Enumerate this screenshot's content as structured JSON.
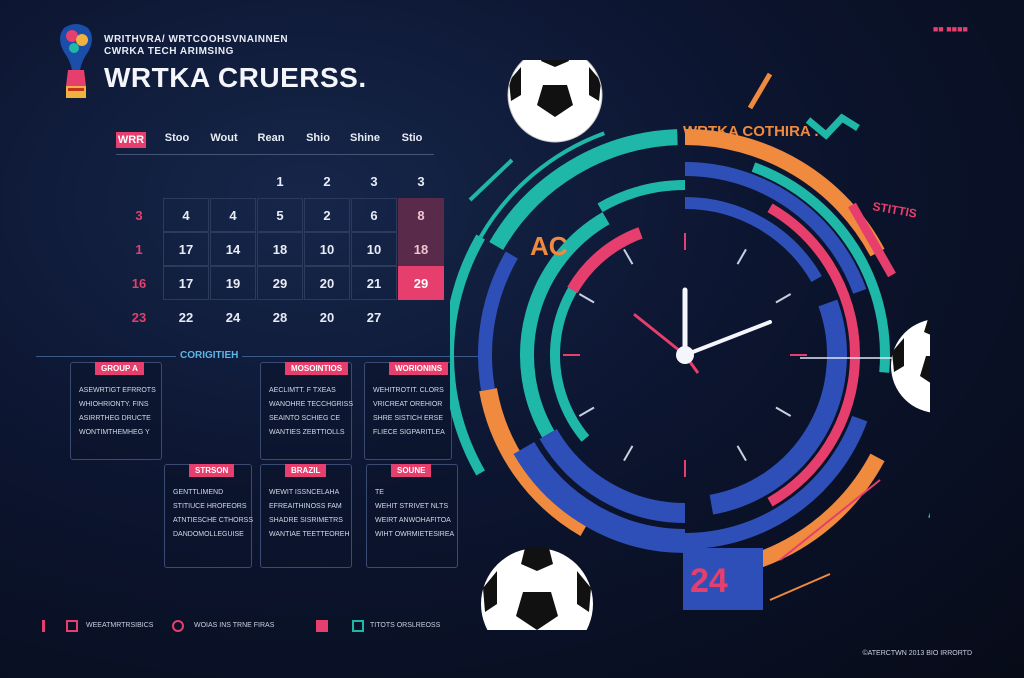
{
  "header": {
    "subtitle_line1": "WRITHVRA/ WRTCOOHSVNAINNEN",
    "subtitle_line2": "CWRKA TECH ARIMSING",
    "title": "WRTKA CRUERSS.",
    "top_right": "■■ ■■■■"
  },
  "calendar": {
    "day_headers": [
      "WRR",
      "Stoo",
      "Wout",
      "Rean",
      "Shio",
      "Shine",
      "Stio"
    ],
    "rows": [
      [
        "",
        "",
        "",
        "1",
        "2",
        "3",
        "3"
      ],
      [
        "3",
        "4",
        "4",
        "5",
        "2",
        "6",
        "8"
      ],
      [
        "1",
        "17",
        "14",
        "18",
        "10",
        "10",
        "18"
      ],
      [
        "16",
        "17",
        "19",
        "29",
        "20",
        "21",
        "29"
      ],
      [
        "23",
        "22",
        "24",
        "28",
        "20",
        "27",
        ""
      ]
    ]
  },
  "section": {
    "label": "CORIGITIEH"
  },
  "cards": [
    {
      "head": "GROUP A",
      "lines": [
        "ASEWRTIGT EFRROTS",
        "WHIOHRIONTY. FINS",
        "ASIRRTHEG DRUCTE",
        "WONTIMTHEMHEG Y"
      ]
    },
    {
      "head": "MOSOINTIOS",
      "lines": [
        "AECLIMTT. F TXEAS",
        "WANOHRE TECCHGRISS",
        "SEAINTO SCHIEG CE",
        "WANTIES ZEBTTIOLLS"
      ]
    },
    {
      "head": "WORIONINS",
      "lines": [
        "WEHITROTIT. CLORS",
        "VRICREAT OREHIOR",
        "SHRE SISTICH ERSE",
        "FLIECE SIGPARITLEA"
      ]
    },
    {
      "head": "STRSON",
      "lines": [
        "GENTTLIMEND",
        "STITIUCE HROFEORS",
        "ATNTIESCHE CTHORSS",
        "DANDOMOLLEGUISE"
      ]
    },
    {
      "head": "BRAZIL",
      "lines": [
        "WEWIT ISSNCELAHA",
        "EFREAITHINOSS FAM",
        "SHADRE SISRIMETRS",
        "WANTIAE TEETTEOREH"
      ]
    },
    {
      "head": "SOUNE",
      "lines": [
        "TE",
        "WEHIT STRIVET NLTS",
        "WEIRT ANWOHAFITOA",
        "WIHT OWRMIETESIREA"
      ]
    }
  ],
  "clock": {
    "top_label": "WRTKA COTHIRA .",
    "left_label": "AC",
    "right_label": "STITTIS",
    "year_badge": "24"
  },
  "footer": {
    "item1": "WEEATMRTRSIBICS",
    "item2": "WOIAS INS TRNE FIRAS",
    "item3": "TITOTS ORSLREOSS",
    "copyright": "©ATERCTWN 2013 BIO IRRORTD"
  },
  "colors": {
    "pink": "#e63e6d",
    "teal": "#1fb8a8",
    "orange": "#f08a3e",
    "blue": "#2e4fb8",
    "background": "#0c1530"
  },
  "icons": [
    "trophy-logo-icon",
    "soccer-ball-icon",
    "clock-icon"
  ]
}
